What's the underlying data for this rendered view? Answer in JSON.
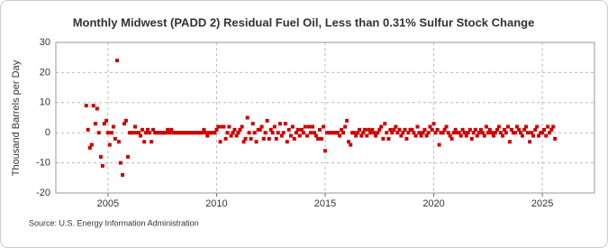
{
  "chart_data": {
    "type": "scatter",
    "title": "Monthly Midwest (PADD 2) Residual Fuel Oil, Less than 0.31% Sulfur Stock Change",
    "y_label": "Thousand Barrels per Day",
    "source": "Source: U.S. Energy Information Administration",
    "color": "#cc0000",
    "grid": true,
    "xlim": [
      2002.6,
      2027.4
    ],
    "xticks": [
      2005,
      2010,
      2015,
      2020,
      2025
    ],
    "ylim": [
      -20,
      30
    ],
    "yticks": [
      -20,
      -10,
      0,
      10,
      20,
      30
    ],
    "x": [
      2004.0,
      2004.08,
      2004.17,
      2004.25,
      2004.33,
      2004.42,
      2004.5,
      2004.58,
      2004.67,
      2004.75,
      2004.83,
      2004.92,
      2005.0,
      2005.08,
      2005.17,
      2005.25,
      2005.33,
      2005.42,
      2005.5,
      2005.58,
      2005.67,
      2005.75,
      2005.83,
      2005.92,
      2006.0,
      2006.08,
      2006.17,
      2006.25,
      2006.33,
      2006.42,
      2006.5,
      2006.58,
      2006.67,
      2006.75,
      2006.83,
      2006.92,
      2007.0,
      2007.08,
      2007.17,
      2007.25,
      2007.33,
      2007.42,
      2007.5,
      2007.58,
      2007.67,
      2007.75,
      2007.83,
      2007.92,
      2008.0,
      2008.08,
      2008.17,
      2008.25,
      2008.33,
      2008.42,
      2008.5,
      2008.58,
      2008.67,
      2008.75,
      2008.83,
      2008.92,
      2009.0,
      2009.08,
      2009.17,
      2009.25,
      2009.33,
      2009.42,
      2009.5,
      2009.58,
      2009.67,
      2009.75,
      2009.83,
      2009.92,
      2010.0,
      2010.08,
      2010.17,
      2010.25,
      2010.33,
      2010.42,
      2010.5,
      2010.58,
      2010.67,
      2010.75,
      2010.83,
      2010.92,
      2011.0,
      2011.08,
      2011.17,
      2011.25,
      2011.33,
      2011.42,
      2011.5,
      2011.58,
      2011.67,
      2011.75,
      2011.83,
      2011.92,
      2012.0,
      2012.08,
      2012.17,
      2012.25,
      2012.33,
      2012.42,
      2012.5,
      2012.58,
      2012.67,
      2012.75,
      2012.83,
      2012.92,
      2013.0,
      2013.08,
      2013.17,
      2013.25,
      2013.33,
      2013.42,
      2013.5,
      2013.58,
      2013.67,
      2013.75,
      2013.83,
      2013.92,
      2014.0,
      2014.08,
      2014.17,
      2014.25,
      2014.33,
      2014.42,
      2014.5,
      2014.58,
      2014.67,
      2014.75,
      2014.83,
      2014.92,
      2015.0,
      2015.08,
      2015.17,
      2015.25,
      2015.33,
      2015.42,
      2015.5,
      2015.58,
      2015.67,
      2015.75,
      2015.83,
      2015.92,
      2016.0,
      2016.08,
      2016.17,
      2016.25,
      2016.33,
      2016.42,
      2016.5,
      2016.58,
      2016.67,
      2016.75,
      2016.83,
      2016.92,
      2017.0,
      2017.08,
      2017.17,
      2017.25,
      2017.33,
      2017.42,
      2017.5,
      2017.58,
      2017.67,
      2017.75,
      2017.83,
      2017.92,
      2018.0,
      2018.08,
      2018.17,
      2018.25,
      2018.33,
      2018.42,
      2018.5,
      2018.58,
      2018.67,
      2018.75,
      2018.83,
      2018.92,
      2019.0,
      2019.08,
      2019.17,
      2019.25,
      2019.33,
      2019.42,
      2019.5,
      2019.58,
      2019.67,
      2019.75,
      2019.83,
      2019.92,
      2020.0,
      2020.08,
      2020.17,
      2020.25,
      2020.33,
      2020.42,
      2020.5,
      2020.58,
      2020.67,
      2020.75,
      2020.83,
      2020.92,
      2021.0,
      2021.08,
      2021.17,
      2021.25,
      2021.33,
      2021.42,
      2021.5,
      2021.58,
      2021.67,
      2021.75,
      2021.83,
      2021.92,
      2022.0,
      2022.08,
      2022.17,
      2022.25,
      2022.33,
      2022.42,
      2022.5,
      2022.58,
      2022.67,
      2022.75,
      2022.83,
      2022.92,
      2023.0,
      2023.08,
      2023.17,
      2023.25,
      2023.33,
      2023.42,
      2023.5,
      2023.58,
      2023.67,
      2023.75,
      2023.83,
      2023.92,
      2024.0,
      2024.08,
      2024.17,
      2024.25,
      2024.33,
      2024.42,
      2024.5,
      2024.58,
      2024.67,
      2024.75,
      2024.83,
      2024.92,
      2025.0,
      2025.08,
      2025.17,
      2025.25,
      2025.33,
      2025.42,
      2025.5,
      2025.58
    ],
    "values": [
      9,
      1,
      -5,
      -4,
      9,
      3,
      8,
      0,
      -8,
      -11,
      3,
      4,
      0,
      -4,
      0,
      2,
      -2,
      24,
      -3,
      -10,
      -14,
      3,
      4,
      -8,
      0,
      0,
      0,
      2,
      0,
      0,
      -1,
      1,
      -3,
      0,
      1,
      0,
      -3,
      1,
      0,
      0,
      0,
      0,
      0,
      0,
      0,
      1,
      0,
      1,
      0,
      0,
      0,
      0,
      0,
      0,
      0,
      0,
      0,
      0,
      0,
      0,
      0,
      0,
      0,
      0,
      0,
      1,
      0,
      -1,
      0,
      0,
      0,
      0,
      1,
      2,
      -3,
      2,
      2,
      -2,
      0,
      2,
      -1,
      0,
      1,
      -1,
      0,
      1,
      2,
      -3,
      -2,
      5,
      0,
      -2,
      3,
      0,
      -3,
      1,
      1,
      2,
      -2,
      0,
      4,
      -2,
      1,
      0,
      2,
      -2,
      0,
      3,
      -1,
      0,
      3,
      -3,
      1,
      -1,
      2,
      -2,
      0,
      1,
      -1,
      1,
      0,
      2,
      -1,
      2,
      0,
      2,
      0,
      -1,
      -2,
      1,
      -2,
      2,
      -6,
      0,
      0,
      0,
      0,
      0,
      0,
      0,
      -1,
      1,
      0,
      2,
      4,
      -3,
      -4,
      0,
      0,
      -1,
      0,
      1,
      -1,
      0,
      1,
      -1,
      1,
      0,
      1,
      0,
      -1,
      0,
      1,
      2,
      -2,
      3,
      0,
      -2,
      1,
      0,
      1,
      2,
      0,
      1,
      -1,
      0,
      1,
      -2,
      0,
      1,
      1,
      0,
      -1,
      2,
      0,
      -1,
      0,
      1,
      -1,
      0,
      2,
      1,
      3,
      0,
      1,
      -4,
      0,
      0,
      1,
      2,
      0,
      -1,
      -2,
      0,
      1,
      0,
      0,
      -1,
      1,
      0,
      -1,
      0,
      1,
      -2,
      0,
      1,
      -1,
      0,
      1,
      0,
      -1,
      2,
      0,
      1,
      0,
      -1,
      0,
      1,
      2,
      0,
      -1,
      1,
      0,
      2,
      -3,
      1,
      0,
      0,
      2,
      1,
      0,
      -1,
      1,
      2,
      0,
      -3,
      0,
      -1,
      1,
      2,
      -1,
      0,
      0,
      1,
      -1,
      2,
      0,
      1,
      2,
      -2
    ]
  }
}
